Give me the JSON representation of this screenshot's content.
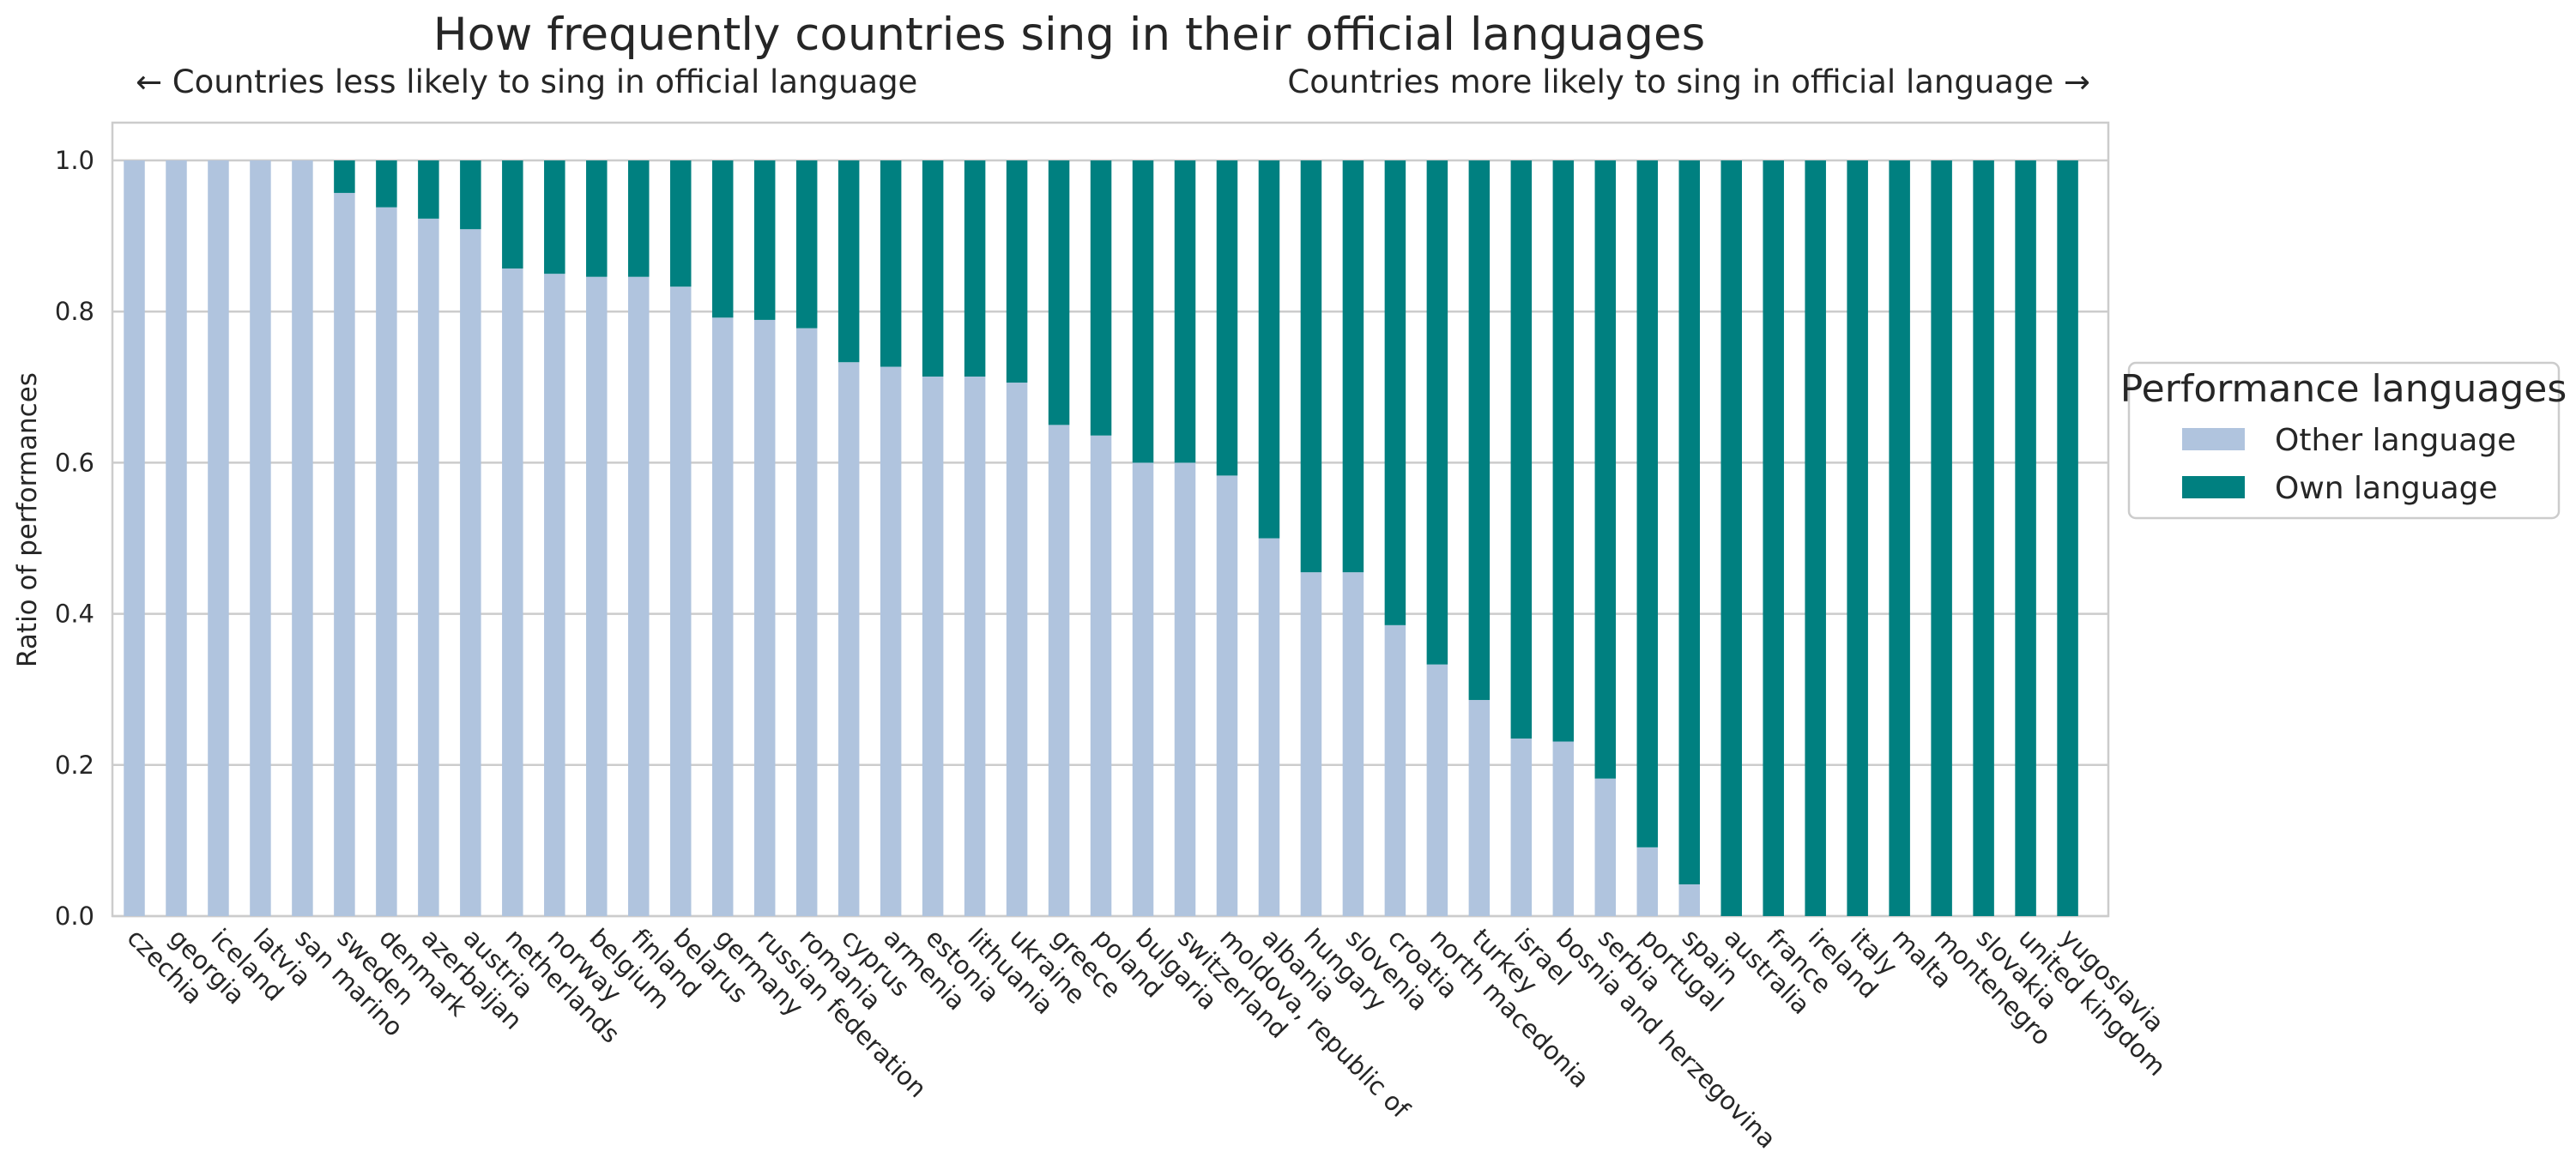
{
  "chart_data": {
    "type": "bar",
    "stacked": true,
    "title": "How frequently countries sing in their official languages",
    "annotation_left": "← Countries less likely to sing in official language",
    "annotation_right": "Countries more likely to sing in official language →",
    "xlabel": "",
    "ylabel": "Ratio of performances",
    "ylim": [
      0,
      1.05
    ],
    "yticks": [
      "0.0",
      "0.2",
      "0.4",
      "0.6",
      "0.8",
      "1.0"
    ],
    "grid": true,
    "legend": {
      "title": "Performance languages",
      "placement": "right"
    },
    "categories": [
      "czechia",
      "georgia",
      "iceland",
      "latvia",
      "san marino",
      "sweden",
      "denmark",
      "azerbaijan",
      "austria",
      "netherlands",
      "norway",
      "belgium",
      "finland",
      "belarus",
      "germany",
      "russian federation",
      "romania",
      "cyprus",
      "armenia",
      "estonia",
      "lithuania",
      "ukraine",
      "greece",
      "poland",
      "bulgaria",
      "switzerland",
      "moldova, republic of",
      "albania",
      "hungary",
      "slovenia",
      "croatia",
      "north macedonia",
      "turkey",
      "israel",
      "bosnia and herzegovina",
      "serbia",
      "portugal",
      "spain",
      "australia",
      "france",
      "ireland",
      "italy",
      "malta",
      "montenegro",
      "slovakia",
      "united kingdom",
      "yugoslavia"
    ],
    "series": [
      {
        "name": "Other language",
        "color": "#b0c4de",
        "values": [
          1.0,
          1.0,
          1.0,
          1.0,
          1.0,
          0.957,
          0.938,
          0.923,
          0.909,
          0.857,
          0.85,
          0.846,
          0.846,
          0.833,
          0.792,
          0.789,
          0.778,
          0.733,
          0.727,
          0.714,
          0.714,
          0.706,
          0.65,
          0.636,
          0.6,
          0.6,
          0.583,
          0.5,
          0.455,
          0.455,
          0.385,
          0.333,
          0.286,
          0.235,
          0.231,
          0.182,
          0.091,
          0.042,
          0.0,
          0.0,
          0.0,
          0.0,
          0.0,
          0.0,
          0.0,
          0.0,
          0.0
        ]
      },
      {
        "name": "Own language",
        "color": "#008080",
        "values": [
          0.0,
          0.0,
          0.0,
          0.0,
          0.0,
          0.043,
          0.062,
          0.077,
          0.091,
          0.143,
          0.15,
          0.154,
          0.154,
          0.167,
          0.208,
          0.211,
          0.222,
          0.267,
          0.273,
          0.286,
          0.286,
          0.294,
          0.35,
          0.364,
          0.4,
          0.4,
          0.417,
          0.5,
          0.545,
          0.545,
          0.615,
          0.667,
          0.714,
          0.765,
          0.769,
          0.818,
          0.909,
          0.958,
          1.0,
          1.0,
          1.0,
          1.0,
          1.0,
          1.0,
          1.0,
          1.0,
          1.0
        ]
      }
    ]
  }
}
